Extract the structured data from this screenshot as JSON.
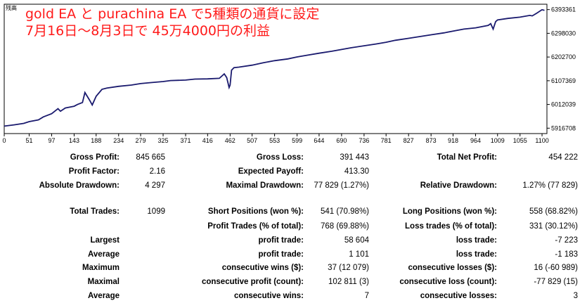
{
  "header": {
    "line1": "gold EA と purachina EA で5種類の通貨に設定",
    "line2": "7月16日～8月3日で 45万4000円の利益",
    "corner_label": "残高"
  },
  "chart_data": {
    "type": "line",
    "title": "",
    "ylabel": "残高",
    "xlabel": "",
    "x_ticks": [
      0,
      51,
      97,
      143,
      188,
      234,
      279,
      325,
      371,
      416,
      462,
      507,
      553,
      599,
      644,
      690,
      736,
      781,
      827,
      873,
      918,
      964,
      1009,
      1055,
      1100
    ],
    "y_ticks": [
      5916708,
      6012039,
      6107369,
      6202700,
      6298030,
      6393361
    ],
    "y_tick_labels": [
      "5916708",
      "6012039",
      "6107369",
      "6202700",
      "6298030",
      "6393361"
    ],
    "xlim": [
      0,
      1110
    ],
    "ylim": [
      5895000,
      6415000
    ],
    "grid": false,
    "line_color": "#1a1a6e",
    "series": [
      {
        "name": "",
        "x": [
          0,
          20,
          40,
          51,
          70,
          80,
          97,
          110,
          115,
          125,
          143,
          150,
          160,
          165,
          175,
          180,
          188,
          200,
          210,
          234,
          260,
          279,
          300,
          325,
          340,
          371,
          390,
          416,
          440,
          450,
          455,
          460,
          462,
          465,
          470,
          480,
          507,
          530,
          553,
          580,
          599,
          620,
          644,
          670,
          690,
          710,
          736,
          760,
          781,
          800,
          827,
          850,
          873,
          900,
          918,
          940,
          964,
          990,
          995,
          1000,
          1005,
          1009,
          1030,
          1055,
          1075,
          1080,
          1090,
          1100,
          1105
        ],
        "y": [
          5925000,
          5930000,
          5936000,
          5943000,
          5950000,
          5962000,
          5975000,
          5995000,
          5985000,
          5998000,
          6005000,
          6012000,
          6020000,
          6060000,
          6028000,
          6010000,
          6045000,
          6073000,
          6078000,
          6085000,
          6090000,
          6096000,
          6100000,
          6104000,
          6108000,
          6110000,
          6114000,
          6115000,
          6117000,
          6135000,
          6120000,
          6080000,
          6090000,
          6150000,
          6160000,
          6162000,
          6170000,
          6180000,
          6188000,
          6195000,
          6203000,
          6210000,
          6218000,
          6226000,
          6233000,
          6240000,
          6248000,
          6255000,
          6262000,
          6270000,
          6278000,
          6285000,
          6292000,
          6300000,
          6307000,
          6315000,
          6320000,
          6330000,
          6337000,
          6315000,
          6345000,
          6352000,
          6358000,
          6363000,
          6370000,
          6368000,
          6380000,
          6393000,
          6390000
        ]
      }
    ]
  },
  "stats": {
    "gross_profit": {
      "label": "Gross Profit:",
      "value": "845 665"
    },
    "gross_loss": {
      "label": "Gross Loss:",
      "value": "391 443"
    },
    "total_net_profit": {
      "label": "Total Net Profit:",
      "value": "454 222"
    },
    "profit_factor": {
      "label": "Profit Factor:",
      "value": "2.16"
    },
    "expected_payoff": {
      "label": "Expected Payoff:",
      "value": "413.30"
    },
    "absolute_drawdown": {
      "label": "Absolute Drawdown:",
      "value": "4 297"
    },
    "maximal_drawdown": {
      "label": "Maximal Drawdown:",
      "value": "77 829 (1.27%)"
    },
    "relative_drawdown": {
      "label": "Relative Drawdown:",
      "value": "1.27% (77 829)"
    },
    "total_trades": {
      "label": "Total Trades:",
      "value": "1099"
    },
    "short_positions": {
      "label": "Short Positions (won %):",
      "value": "541 (70.98%)"
    },
    "long_positions": {
      "label": "Long Positions (won %):",
      "value": "558 (68.82%)"
    },
    "profit_trades": {
      "label": "Profit Trades (% of total):",
      "value": "768 (69.88%)"
    },
    "loss_trades": {
      "label": "Loss trades (% of total):",
      "value": "331 (30.12%)"
    },
    "largest": {
      "label": "Largest",
      "profit_label": "profit trade:",
      "profit_value": "58 604",
      "loss_label": "loss trade:",
      "loss_value": "-7 223"
    },
    "average": {
      "label": "Average",
      "profit_label": "profit trade:",
      "profit_value": "1 101",
      "loss_label": "loss trade:",
      "loss_value": "-1 183"
    },
    "maximum": {
      "label": "Maximum",
      "wins_label": "consecutive wins ($):",
      "wins_value": "37 (12 079)",
      "losses_label": "consecutive losses ($):",
      "losses_value": "16 (-60 989)"
    },
    "maximal": {
      "label": "Maximal",
      "profit_label": "consecutive profit (count):",
      "profit_value": "102 811 (3)",
      "loss_label": "consecutive loss (count):",
      "loss_value": "-77 829 (15)"
    },
    "average_consecutive": {
      "label": "Average",
      "wins_label": "consecutive wins:",
      "wins_value": "7",
      "losses_label": "consecutive losses:",
      "losses_value": "3"
    }
  }
}
